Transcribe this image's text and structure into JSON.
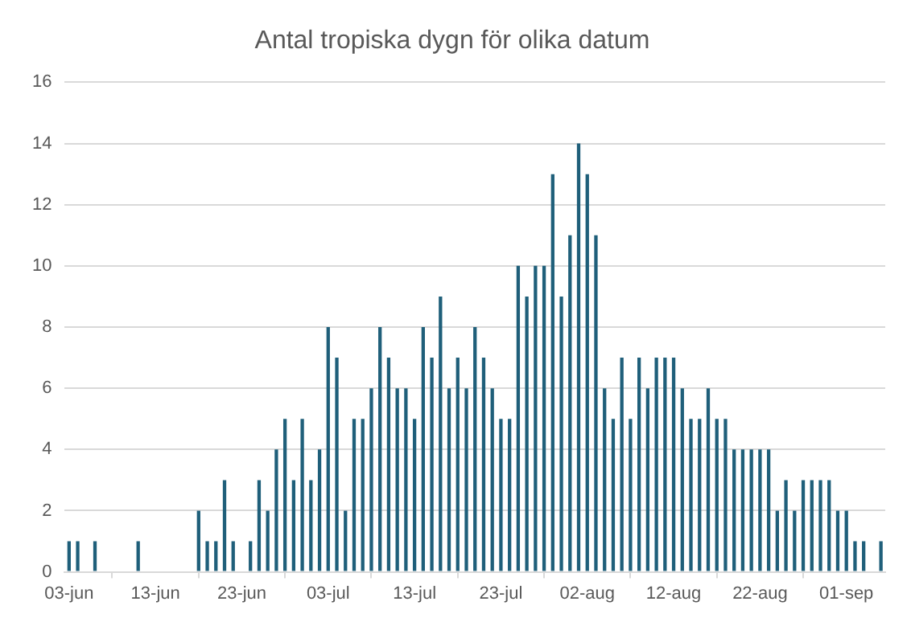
{
  "chart_data": {
    "type": "bar",
    "title": "Antal tropiska dygn för olika datum",
    "categories": [
      "03-jun",
      null,
      null,
      null,
      null,
      null,
      null,
      null,
      null,
      null,
      "13-jun",
      null,
      null,
      null,
      null,
      null,
      null,
      null,
      null,
      null,
      "23-jun",
      null,
      null,
      null,
      null,
      null,
      null,
      null,
      null,
      null,
      "03-jul",
      null,
      null,
      null,
      null,
      null,
      null,
      null,
      null,
      null,
      "13-jul",
      null,
      null,
      null,
      null,
      null,
      null,
      null,
      null,
      null,
      "23-jul",
      null,
      null,
      null,
      null,
      null,
      null,
      null,
      null,
      null,
      "02-aug",
      null,
      null,
      null,
      null,
      null,
      null,
      null,
      null,
      null,
      "12-aug",
      null,
      null,
      null,
      null,
      null,
      null,
      null,
      null,
      null,
      "22-aug",
      null,
      null,
      null,
      null,
      null,
      null,
      null,
      null,
      null,
      "01-sep",
      null,
      null,
      null,
      null
    ],
    "values": [
      1,
      1,
      0,
      1,
      0,
      0,
      0,
      0,
      1,
      0,
      0,
      0,
      0,
      0,
      0,
      2,
      1,
      1,
      3,
      1,
      0,
      1,
      3,
      2,
      4,
      5,
      3,
      5,
      3,
      4,
      8,
      7,
      2,
      5,
      5,
      6,
      8,
      7,
      6,
      6,
      5,
      8,
      7,
      9,
      6,
      7,
      6,
      8,
      7,
      6,
      5,
      5,
      10,
      9,
      10,
      10,
      13,
      9,
      11,
      14,
      13,
      11,
      6,
      5,
      7,
      5,
      7,
      6,
      7,
      7,
      7,
      6,
      5,
      5,
      6,
      5,
      5,
      4,
      4,
      4,
      4,
      4,
      2,
      3,
      2,
      3,
      3,
      3,
      3,
      2,
      2,
      1,
      1,
      0,
      1
    ],
    "color": "#1f5f7a",
    "ylim": [
      0,
      16
    ],
    "yticks": [
      0,
      2,
      4,
      6,
      8,
      10,
      12,
      14,
      16
    ],
    "grid": "y"
  }
}
